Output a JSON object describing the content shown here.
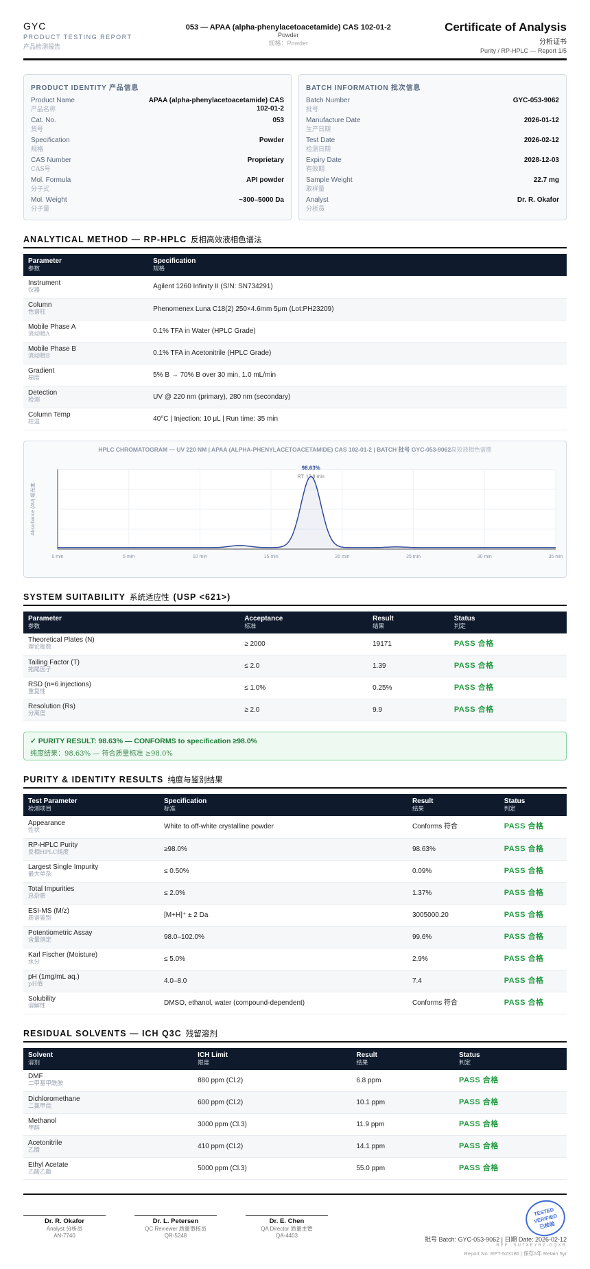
{
  "header": {
    "brand": "GYC",
    "subtitle": "PRODUCT TESTING REPORT",
    "subtitle_cn": "产品检测报告",
    "product": "053 — APAA (alpha-phenylacetoacetamide) CAS 102-01-2",
    "form": "Powder",
    "form_cn": "规格：Powder",
    "doc_title": "Certificate of Analysis",
    "doc_title_cn": "分析证书",
    "report_ref": "Purity / RP-HPLC — Report 1/5"
  },
  "product_identity": {
    "title": "PRODUCT IDENTITY 产品信息",
    "rows": [
      {
        "label": "Product Name",
        "label_cn": "产品名称",
        "value": "APAA (alpha-phenylacetoacetamide) CAS 102-01-2"
      },
      {
        "label": "Cat. No.",
        "label_cn": "货号",
        "value": "053"
      },
      {
        "label": "Specification",
        "label_cn": "规格",
        "value": "Powder"
      },
      {
        "label": "CAS Number",
        "label_cn": "CAS号",
        "value": "Proprietary"
      },
      {
        "label": "Mol. Formula",
        "label_cn": "分子式",
        "value": "API powder"
      },
      {
        "label": "Mol. Weight",
        "label_cn": "分子量",
        "value": "~300–5000 Da"
      }
    ]
  },
  "batch_information": {
    "title": "BATCH INFORMATION 批次信息",
    "rows": [
      {
        "label": "Batch Number",
        "label_cn": "批号",
        "value": "GYC-053-9062"
      },
      {
        "label": "Manufacture Date",
        "label_cn": "生产日期",
        "value": "2026-01-12"
      },
      {
        "label": "Test Date",
        "label_cn": "检测日期",
        "value": "2026-02-12"
      },
      {
        "label": "Expiry Date",
        "label_cn": "有效期",
        "value": "2028-12-03"
      },
      {
        "label": "Sample Weight",
        "label_cn": "取样量",
        "value": "22.7 mg"
      },
      {
        "label": "Analyst",
        "label_cn": "分析员",
        "value": "Dr. R. Okafor"
      }
    ]
  },
  "analytical_method": {
    "title": "ANALYTICAL METHOD — RP-HPLC",
    "title_cn": "反相高效液相色谱法",
    "columns": [
      {
        "en": "Parameter",
        "cn": "参数"
      },
      {
        "en": "Specification",
        "cn": "规格"
      }
    ],
    "rows": [
      [
        "Instrument",
        "仪器",
        "Agilent 1260 Infinity II (S/N: SN734291)"
      ],
      [
        "Column",
        "色谱柱",
        "Phenomenex Luna C18(2) 250×4.6mm 5μm (Lot:PH23209)"
      ],
      [
        "Mobile Phase A",
        "流动相A",
        "0.1% TFA in Water (HPLC Grade)"
      ],
      [
        "Mobile Phase B",
        "流动相B",
        "0.1% TFA in Acetonitrile (HPLC Grade)"
      ],
      [
        "Gradient",
        "梯度",
        "5% B → 70% B over 30 min, 1.0 mL/min"
      ],
      [
        "Detection",
        "检测",
        "UV @ 220 nm (primary), 280 nm (secondary)"
      ],
      [
        "Column Temp",
        "柱温",
        "40°C | Injection: 10 μL | Run time: 35 min"
      ]
    ]
  },
  "chromatogram": {
    "title": "HPLC CHROMATOGRAM — UV 220 NM | APAA (ALPHA-PHENYLACETOACETAMIDE) CAS 102-01-2 | BATCH 批号 GYC-053-9062",
    "title_cn": "高效液相色谱图",
    "y_label": "Absorbance (AU) 吸光度",
    "peak_label": "98.63%",
    "rt_label": "RT: 17.8 min",
    "xlim": [
      0,
      35
    ],
    "ylim": [
      -2,
      110
    ],
    "xticks": [
      {
        "value": 0,
        "label": "0 min"
      },
      {
        "value": 5,
        "label": "5 min"
      },
      {
        "value": 10,
        "label": "10 min"
      },
      {
        "value": 15,
        "label": "15 min"
      },
      {
        "value": 20,
        "label": "20 min"
      },
      {
        "value": 25,
        "label": "25 min"
      },
      {
        "value": 30,
        "label": "30 min"
      },
      {
        "value": 35,
        "label": "35 min"
      }
    ],
    "peaks": [
      {
        "rt": 12.8,
        "height": 3
      },
      {
        "rt": 17.8,
        "height": 100
      },
      {
        "rt": 23.8,
        "height": 1
      }
    ],
    "color": "#2f4a9a"
  },
  "system_suitability": {
    "title": "SYSTEM SUITABILITY",
    "title_cn": "系统适应性",
    "title_ref": "(USP <621>)",
    "columns": [
      {
        "en": "Parameter",
        "cn": "参数"
      },
      {
        "en": "Acceptance",
        "cn": "标准"
      },
      {
        "en": "Result",
        "cn": "结果"
      },
      {
        "en": "Status",
        "cn": "判定"
      }
    ],
    "rows": [
      [
        "Theoretical Plates (N)",
        "理论板数",
        "≥ 2000",
        "19171",
        "PASS 合格"
      ],
      [
        "Tailing Factor (T)",
        "拖尾因子",
        "≤ 2.0",
        "1.39",
        "PASS 合格"
      ],
      [
        "RSD (n=6 injections)",
        "重复性",
        "≤ 1.0%",
        "0.25%",
        "PASS 合格"
      ],
      [
        "Resolution (Rs)",
        "分离度",
        "≥ 2.0",
        "9.9",
        "PASS 合格"
      ]
    ]
  },
  "purity_result": {
    "line1": "✓ PURITY RESULT: 98.63% — CONFORMS to specification ≥98.0%",
    "line2": "纯度结果：98.63% — 符合质量标准 ≥98.0%"
  },
  "purity_identity": {
    "title": "PURITY & IDENTITY RESULTS",
    "title_cn": "纯度与鉴别结果",
    "columns": [
      {
        "en": "Test Parameter",
        "cn": "检测项目"
      },
      {
        "en": "Specification",
        "cn": "标准"
      },
      {
        "en": "Result",
        "cn": "结果"
      },
      {
        "en": "Status",
        "cn": "判定"
      }
    ],
    "rows": [
      [
        "Appearance",
        "性状",
        "White to off-white crystalline powder",
        "Conforms 符合",
        "PASS 合格"
      ],
      [
        "RP-HPLC Purity",
        "反相HPLC纯度",
        "≥98.0%",
        "98.63%",
        "PASS 合格"
      ],
      [
        "Largest Single Impurity",
        "最大单杂",
        "≤ 0.50%",
        "0.09%",
        "PASS 合格"
      ],
      [
        "Total Impurities",
        "总杂质",
        "≤ 2.0%",
        "1.37%",
        "PASS 合格"
      ],
      [
        "ESI-MS (M/z)",
        "质谱鉴别",
        "[M+H]⁺ ± 2 Da",
        "3005000.20",
        "PASS 合格"
      ],
      [
        "Potentiometric Assay",
        "含量测定",
        "98.0–102.0%",
        "99.6%",
        "PASS 合格"
      ],
      [
        "Karl Fischer (Moisture)",
        "水分",
        "≤ 5.0%",
        "2.9%",
        "PASS 合格"
      ],
      [
        "pH (1mg/mL aq.)",
        "pH值",
        "4.0–8.0",
        "7.4",
        "PASS 合格"
      ],
      [
        "Solubility",
        "溶解性",
        "DMSO, ethanol, water (compound-dependent)",
        "Conforms 符合",
        "PASS 合格"
      ]
    ]
  },
  "residual_solvents": {
    "title": "RESIDUAL SOLVENTS — ICH Q3C",
    "title_cn": "残留溶剂",
    "columns": [
      {
        "en": "Solvent",
        "cn": "溶剂"
      },
      {
        "en": "ICH Limit",
        "cn": "限度"
      },
      {
        "en": "Result",
        "cn": "结果"
      },
      {
        "en": "Status",
        "cn": "判定"
      }
    ],
    "rows": [
      [
        "DMF",
        "二甲基甲酰胺",
        "880 ppm (Cl.2)",
        "6.8 ppm",
        "PASS 合格"
      ],
      [
        "Dichloromethane",
        "二氯甲烷",
        "600 ppm (Cl.2)",
        "10.1 ppm",
        "PASS 合格"
      ],
      [
        "Methanol",
        "甲醇",
        "3000 ppm (Cl.3)",
        "11.9 ppm",
        "PASS 合格"
      ],
      [
        "Acetonitrile",
        "乙腈",
        "410 ppm (Cl.2)",
        "14.1 ppm",
        "PASS 合格"
      ],
      [
        "Ethyl Acetate",
        "乙酸乙酯",
        "5000 ppm (Cl.3)",
        "55.0 ppm",
        "PASS 合格"
      ]
    ]
  },
  "footer": {
    "signatures": [
      {
        "name": "Dr. R. Okafor",
        "role": "Analyst 分析员",
        "id": "AN-7740"
      },
      {
        "name": "Dr. L. Petersen",
        "role": "QC Reviewer 质量审核员",
        "id": "QR-5248"
      },
      {
        "name": "Dr. E. Chen",
        "role": "QA Director 质量主管",
        "id": "QA-4403"
      }
    ],
    "stamp": [
      "TESTED",
      "VERIFIED",
      "已检验"
    ],
    "batch_date": "批号 Batch: GYC-053-9062 | 日期 Date: 2026-02-12",
    "ref": "REF: SUTXEYRZ-DQXR",
    "report_no": "Report No: RPT-523186 | 保存5年 Retain 5yr"
  }
}
